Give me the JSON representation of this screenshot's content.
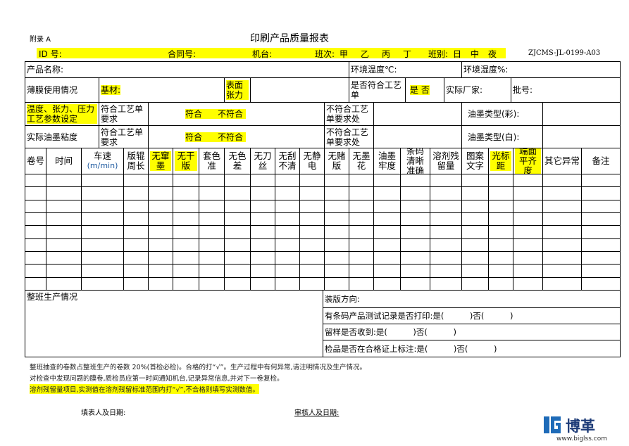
{
  "header": {
    "appendix": "附录 A",
    "title": "印刷产品质量报表",
    "id": "ID 号:",
    "contract": "合同号:",
    "machine": "机台:",
    "shift_label": "班次:",
    "shifts": [
      "甲",
      "乙",
      "丙",
      "丁"
    ],
    "team_label": "班别:",
    "teams": [
      "日",
      "中",
      "夜"
    ],
    "code": "ZJCMS-JL-0199-A03"
  },
  "form": {
    "product_name": "产品名称:",
    "env_temp": "环境温度℃:",
    "env_humidity": "环境湿度%:",
    "film_usage": "薄膜使用情况",
    "substrate": "基材:",
    "surface_tension": "表面张力",
    "process_match": "是否符合工艺单",
    "yes_no": "是 否",
    "manufacturer": "实际厂家:",
    "batch": "批号:",
    "param_setting": "温度、张力、压力工艺参数设定",
    "ink_viscosity": "实际油墨粘度",
    "meets_process": "符合工艺单要求",
    "conform": "符合",
    "nonconform": "不符合",
    "nonconform_detail": "不符合工艺单要求处",
    "ink_color": "油墨类型(彩):",
    "ink_white": "油墨类型(白):"
  },
  "table": {
    "columns": [
      {
        "label": "卷号"
      },
      {
        "label": "时间"
      },
      {
        "label": "车速",
        "unit": "(m/min)"
      },
      {
        "label": "版辊周长"
      },
      {
        "label": "无窜墨",
        "highlight": true
      },
      {
        "label": "无干版",
        "highlight": true
      },
      {
        "label": "套色准"
      },
      {
        "label": "无色差"
      },
      {
        "label": "无刀丝"
      },
      {
        "label": "无刮不清"
      },
      {
        "label": "无静电"
      },
      {
        "label": "无赌版"
      },
      {
        "label": "无墨花"
      },
      {
        "label": "油墨牢度"
      },
      {
        "label": "条码清晰准确"
      },
      {
        "label": "溶剂残留量"
      },
      {
        "label": "图案文字"
      },
      {
        "label": "光标距",
        "highlight": true
      },
      {
        "label": "端面平齐度",
        "highlight": true
      },
      {
        "label": "其它异常"
      },
      {
        "label": "备注"
      }
    ]
  },
  "summary": {
    "shift_production": "整班生产情况",
    "plate_direction": "装版方向:",
    "barcode_test": "有条码产品测试记录是否打印:是(          )否(          )",
    "sample_received": "留样是否收到:是(          )否(          )",
    "cert_marked": "检品是否在合格证上标注:是(          )否(          )"
  },
  "notes": [
    "整班抽查的卷数占整班生产的卷数 20%(首检必检)。合格的打“√”。生产过程中有何异常,请注明情况及生产情况。",
    "对检查中发现问题的膜卷,质检员应第一时间通知机台,记录异常信息,并对下一卷复检。",
    "溶剂残留量项目,实测值在溶剂残留标准范围内打“√”,不合格则填写实测数值。"
  ],
  "footer": {
    "filler": "填表人及日期:",
    "reviewer": "审核人及日期:"
  },
  "logo": {
    "name": "博革",
    "url": "www.biglss.com"
  }
}
